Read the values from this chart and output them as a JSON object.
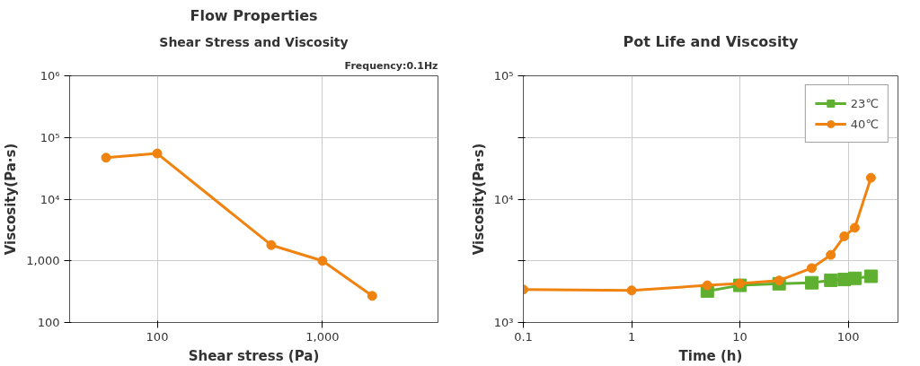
{
  "chart_data": [
    {
      "type": "line",
      "title": "Flow Properties",
      "subtitle": "Shear Stress and Viscosity",
      "xlabel": "Shear stress (Pa)",
      "ylabel": "Viscosity(Pa·s)",
      "annotations": [
        "Frequency:0.1Hz"
      ],
      "log": "xy",
      "xlim": [
        29.5,
        5000
      ],
      "ylim": [
        100,
        1000000
      ],
      "xticks": [
        100,
        {
          "value": 1000,
          "label": "1,000"
        }
      ],
      "yticks": [
        {
          "value": 100,
          "label": "100"
        },
        {
          "value": 1000,
          "label": "1,000"
        },
        {
          "value": 10000,
          "label": "10⁴"
        },
        {
          "value": 100000,
          "label": "10⁵"
        },
        {
          "value": 1000000,
          "label": "10⁶"
        }
      ],
      "grid": true,
      "marker": "circle",
      "line_style": "solid",
      "legend": false,
      "series": [
        {
          "color": "#f0820f",
          "x": [
            49,
            100,
            490,
            1000,
            2000
          ],
          "values": [
            47000,
            55000,
            1800,
            1000,
            270
          ]
        }
      ]
    },
    {
      "type": "line",
      "title": "Pot Life and Viscosity",
      "xlabel": "Time (h)",
      "ylabel": "Viscosity(Pa·s)",
      "log": "xy",
      "xlim": [
        0.1,
        288
      ],
      "ylim": [
        1000,
        100000
      ],
      "xticks": [
        0.1,
        1,
        10,
        100
      ],
      "yticks": [
        {
          "value": 1000,
          "label": "10³"
        },
        {
          "value": 3162,
          "label": null
        },
        {
          "value": 10000,
          "label": "10⁴"
        },
        {
          "value": 31623,
          "label": null
        },
        {
          "value": 100000,
          "label": "10⁵"
        }
      ],
      "grid": true,
      "line_style": "solid",
      "legend": "top right",
      "series": [
        {
          "name": "23℃",
          "color": "#5fb030",
          "marker": "square",
          "x": [
            5,
            10,
            23,
            46,
            69,
            92,
            115,
            162
          ],
          "values": [
            1800,
            2000,
            2060,
            2100,
            2200,
            2230,
            2280,
            2370
          ]
        },
        {
          "name": "40℃",
          "color": "#f0820f",
          "marker": "circle",
          "x": [
            0.1,
            1,
            5,
            10,
            23,
            46,
            69,
            92,
            115,
            162
          ],
          "values": [
            1850,
            1820,
            2000,
            2070,
            2190,
            2760,
            3530,
            5000,
            5860,
            14900
          ]
        }
      ]
    }
  ]
}
